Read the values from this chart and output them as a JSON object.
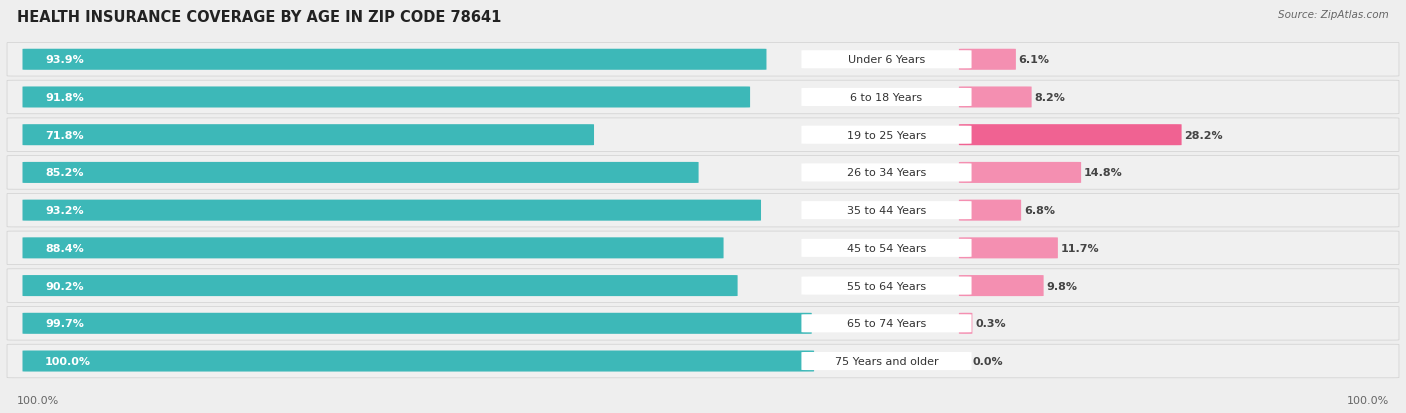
{
  "title": "HEALTH INSURANCE COVERAGE BY AGE IN ZIP CODE 78641",
  "source": "Source: ZipAtlas.com",
  "categories": [
    "Under 6 Years",
    "6 to 18 Years",
    "19 to 25 Years",
    "26 to 34 Years",
    "35 to 44 Years",
    "45 to 54 Years",
    "55 to 64 Years",
    "65 to 74 Years",
    "75 Years and older"
  ],
  "with_coverage": [
    93.9,
    91.8,
    71.8,
    85.2,
    93.2,
    88.4,
    90.2,
    99.7,
    100.0
  ],
  "without_coverage": [
    6.1,
    8.2,
    28.2,
    14.8,
    6.8,
    11.7,
    9.8,
    0.3,
    0.0
  ],
  "color_with": "#3db8b8",
  "color_without": "#f48fb1",
  "color_without_bright": "#f06292",
  "background_color": "#eeeeee",
  "bar_bg_color": "#e8e8e8",
  "bar_inner_bg": "#f5f5f5",
  "title_fontsize": 10.5,
  "bar_label_fontsize": 8,
  "category_fontsize": 8,
  "legend_fontsize": 8.5,
  "source_fontsize": 7.5
}
